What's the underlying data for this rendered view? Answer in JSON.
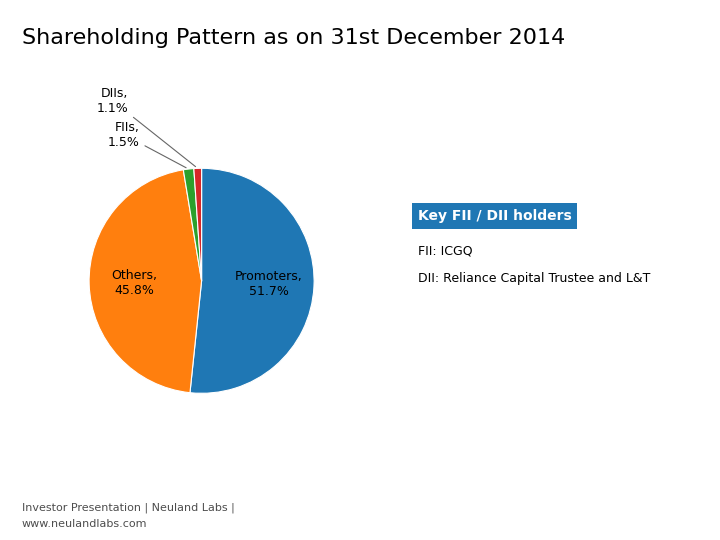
{
  "chart_data": {
    "type": "pie",
    "title": "Shareholding Pattern as on 31st December 2014",
    "categories": [
      "Promoters,\n51.7%",
      "Others,\n45.8%",
      "FIIs,\n1.5%",
      "DIIs,\n1.1%"
    ],
    "values": [
      51.7,
      45.8,
      1.5,
      1.1
    ],
    "data_labels": true,
    "annotations": [
      "Key FII / DII holders",
      "FII: ICGQ",
      "DII: Reliance Capital Trustee and L&T",
      "Investor Presentation | Neuland Labs |",
      "www.neulandlabs.com"
    ]
  }
}
